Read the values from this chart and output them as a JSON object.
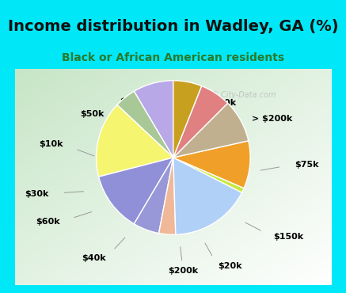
{
  "title": "Income distribution in Wadley, GA (%)",
  "subtitle": "Black or African American residents",
  "bg_cyan": "#00e8f8",
  "bg_chart_top_left": "#c8e8c8",
  "labels": [
    "$100k",
    "> $200k",
    "$75k",
    "$150k",
    "$20k",
    "$200k",
    "$40k",
    "$60k",
    "$30k",
    "$10k",
    "$50k",
    "$125k"
  ],
  "sizes": [
    8.5,
    4.5,
    16.0,
    12.5,
    5.5,
    3.5,
    17.0,
    1.0,
    10.0,
    9.0,
    6.5,
    6.0
  ],
  "colors": [
    "#b8a8e8",
    "#a8c898",
    "#f5f570",
    "#9090d8",
    "#9898d8",
    "#f0b898",
    "#b0d0f8",
    "#c8e840",
    "#f0a028",
    "#c0b090",
    "#e08080",
    "#c8a020"
  ],
  "startangle": 90,
  "title_fontsize": 14,
  "subtitle_fontsize": 10,
  "label_fontsize": 8,
  "watermark": "City-Data.com"
}
